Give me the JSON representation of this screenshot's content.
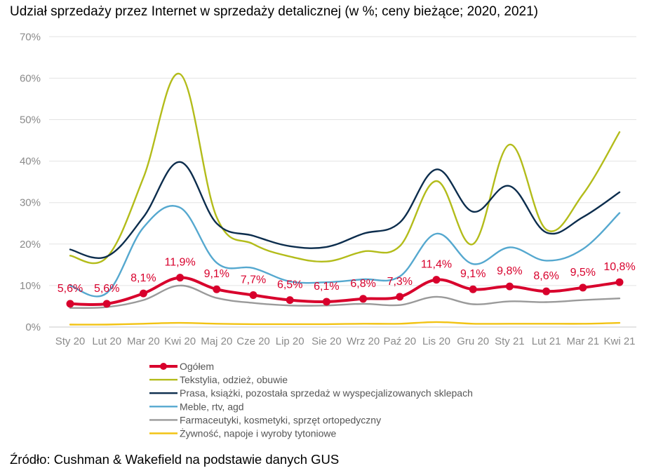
{
  "title": "Udział sprzedaży przez Internet w sprzedaży detalicznej (w %; ceny bieżące; 2020, 2021)",
  "source": "Źródło: Cushman & Wakefield na podstawie danych GUS",
  "chart_data": {
    "type": "line",
    "title": "Udział sprzedaży przez Internet w sprzedaży detalicznej (w %; ceny bieżące; 2020, 2021)",
    "xlabel": "",
    "ylabel": "",
    "ylim": [
      0,
      70
    ],
    "yticks": [
      0,
      10,
      20,
      30,
      40,
      50,
      60,
      70
    ],
    "ytick_labels": [
      "0%",
      "10%",
      "20%",
      "30%",
      "40%",
      "50%",
      "60%",
      "70%"
    ],
    "grid": true,
    "legend_position": "bottom",
    "categories": [
      "Sty 20",
      "Lut 20",
      "Mar 20",
      "Kwi 20",
      "Maj 20",
      "Cze 20",
      "Lip 20",
      "Sie 20",
      "Wrz 20",
      "Paź 20",
      "Lis 20",
      "Gru 20",
      "Sty 21",
      "Lut 21",
      "Mar 21",
      "Kwi 21"
    ],
    "series": [
      {
        "name": "Ogółem",
        "color": "#d8002c",
        "markers": true,
        "values": [
          5.6,
          5.6,
          8.1,
          11.9,
          9.1,
          7.7,
          6.5,
          6.1,
          6.8,
          7.3,
          11.4,
          9.1,
          9.8,
          8.6,
          9.5,
          10.8
        ],
        "labels": [
          "5,6%",
          "5,6%",
          "8,1%",
          "11,9%",
          "9,1%",
          "7,7%",
          "6,5%",
          "6,1%",
          "6,8%",
          "7,3%",
          "11,4%",
          "9,1%",
          "9,8%",
          "8,6%",
          "9,5%",
          "10,8%"
        ]
      },
      {
        "name": "Tekstylia, odzież, obuwie",
        "color": "#b3bc1a",
        "values": [
          17.2,
          16.8,
          36.0,
          61.0,
          26.5,
          20.0,
          17.0,
          15.8,
          18.2,
          19.5,
          35.2,
          20.0,
          44.0,
          23.5,
          32.0,
          47.0
        ]
      },
      {
        "name": "Prasa, książki, pozostała sprzedaż w wyspecjalizowanych sklepach",
        "color": "#0c2d4d",
        "values": [
          18.7,
          17.0,
          26.5,
          39.8,
          25.0,
          22.0,
          19.5,
          19.3,
          22.5,
          25.2,
          38.0,
          27.8,
          34.0,
          22.8,
          26.5,
          32.5
        ]
      },
      {
        "name": "Meble, rtv, agd",
        "color": "#55a8cf",
        "values": [
          10.0,
          8.2,
          24.0,
          28.8,
          15.5,
          14.2,
          11.0,
          10.8,
          11.5,
          12.2,
          22.5,
          15.2,
          19.2,
          16.0,
          18.8,
          27.5
        ]
      },
      {
        "name": "Farmaceutyki, kosmetyki, sprzęt ortopedyczny",
        "color": "#9a9a9a",
        "values": [
          4.6,
          4.8,
          6.5,
          10.0,
          7.0,
          5.8,
          5.2,
          5.2,
          5.6,
          5.3,
          7.3,
          5.5,
          6.2,
          6.0,
          6.5,
          6.9
        ]
      },
      {
        "name": "Żywność, napoje i wyroby tytoniowe",
        "color": "#f2c314",
        "values": [
          0.6,
          0.6,
          0.8,
          1.0,
          0.8,
          0.7,
          0.7,
          0.7,
          0.8,
          0.8,
          1.2,
          0.8,
          0.8,
          0.8,
          0.8,
          1.0
        ]
      }
    ],
    "legend_order": [
      0,
      1,
      2,
      3,
      4,
      5
    ]
  }
}
